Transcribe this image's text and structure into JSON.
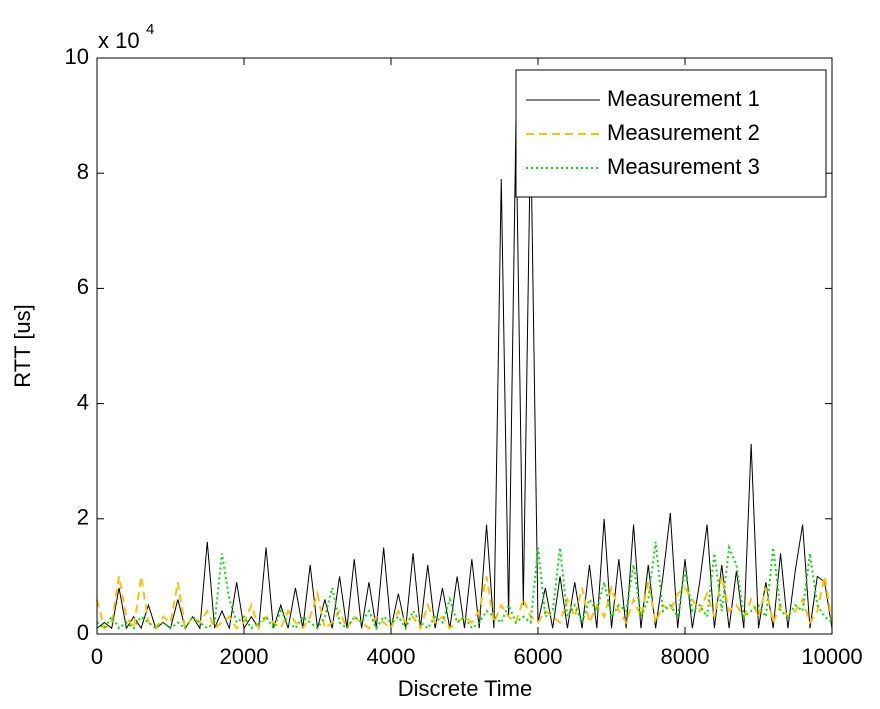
{
  "chart_data": {
    "type": "line",
    "x_label": "Discrete Time",
    "y_label": "RTT [us]",
    "y_multiplier": "x 10",
    "y_multiplier_exponent": "4",
    "x": [
      0,
      100,
      200,
      300,
      400,
      500,
      600,
      700,
      800,
      900,
      1000,
      1100,
      1200,
      1300,
      1400,
      1500,
      1600,
      1700,
      1800,
      1900,
      2000,
      2100,
      2200,
      2300,
      2400,
      2500,
      2600,
      2700,
      2800,
      2900,
      3000,
      3100,
      3200,
      3300,
      3400,
      3500,
      3600,
      3700,
      3800,
      3900,
      4000,
      4100,
      4200,
      4300,
      4400,
      4500,
      4600,
      4700,
      4800,
      4900,
      5000,
      5100,
      5200,
      5300,
      5400,
      5500,
      5600,
      5700,
      5800,
      5900,
      6000,
      6100,
      6200,
      6300,
      6400,
      6500,
      6600,
      6700,
      6800,
      6900,
      7000,
      7100,
      7200,
      7300,
      7400,
      7500,
      7600,
      7700,
      7800,
      7900,
      8000,
      8100,
      8200,
      8300,
      8400,
      8500,
      8600,
      8700,
      8800,
      8900,
      9000,
      9100,
      9200,
      9300,
      9400,
      9500,
      9600,
      9700,
      9800,
      9900,
      10000
    ],
    "series": [
      {
        "name": "Measurement 1",
        "color": "#000000",
        "linestyle": "solid",
        "values": [
          0.1,
          0.2,
          0.1,
          0.8,
          0.1,
          0.3,
          0.1,
          0.5,
          0.1,
          0.2,
          0.1,
          0.6,
          0.1,
          0.3,
          0.1,
          1.6,
          0.1,
          0.4,
          0.1,
          0.9,
          0.1,
          0.3,
          0.1,
          1.5,
          0.1,
          0.5,
          0.1,
          0.8,
          0.1,
          1.2,
          0.1,
          0.6,
          0.1,
          1.0,
          0.1,
          1.3,
          0.1,
          0.9,
          0.1,
          1.5,
          0.1,
          0.7,
          0.1,
          1.4,
          0.1,
          1.2,
          0.1,
          0.8,
          0.1,
          1.0,
          0.1,
          1.3,
          0.1,
          1.9,
          0.1,
          7.9,
          0.3,
          8.9,
          0.5,
          8.8,
          0.2,
          0.8,
          0.1,
          1.0,
          0.1,
          0.9,
          0.1,
          1.2,
          0.1,
          2.0,
          0.1,
          1.3,
          0.1,
          1.9,
          0.1,
          1.2,
          0.1,
          1.0,
          2.1,
          0.1,
          1.3,
          0.1,
          0.9,
          1.9,
          0.1,
          1.2,
          0.1,
          1.1,
          0.1,
          3.3,
          0.1,
          0.9,
          0.1,
          1.4,
          0.1,
          1.1,
          1.9,
          0.1,
          1.0,
          0.9,
          0.1
        ]
      },
      {
        "name": "Measurement 2",
        "color": "#ffc000",
        "linestyle": "dashed",
        "values": [
          0.6,
          0.1,
          0.2,
          1.0,
          0.3,
          0.1,
          1.0,
          0.2,
          0.1,
          0.3,
          0.2,
          0.9,
          0.1,
          0.3,
          0.2,
          0.4,
          0.1,
          0.2,
          0.3,
          0.1,
          0.2,
          0.5,
          0.1,
          0.3,
          0.2,
          0.1,
          0.4,
          0.2,
          0.1,
          0.3,
          0.7,
          0.1,
          0.2,
          0.4,
          0.1,
          0.3,
          0.2,
          0.1,
          0.3,
          0.2,
          0.1,
          0.4,
          0.2,
          0.3,
          0.1,
          0.5,
          0.2,
          0.3,
          0.1,
          0.2,
          0.3,
          0.2,
          0.4,
          1.0,
          0.2,
          0.5,
          0.3,
          0.2,
          0.6,
          0.3,
          0.2,
          0.4,
          0.3,
          0.2,
          0.6,
          0.3,
          0.8,
          0.2,
          0.5,
          0.3,
          0.8,
          0.4,
          0.2,
          0.6,
          0.3,
          0.9,
          0.2,
          0.5,
          0.4,
          0.7,
          0.8,
          0.6,
          0.4,
          0.7,
          0.3,
          1.0,
          0.4,
          0.5,
          0.3,
          0.6,
          0.3,
          0.8,
          0.2,
          0.5,
          0.3,
          0.4,
          0.6,
          0.2,
          0.4,
          1.0,
          0.2
        ]
      },
      {
        "name": "Measurement 3",
        "color": "#00e000",
        "linestyle": "dotted",
        "values": [
          0.2,
          0.1,
          0.3,
          0.1,
          0.2,
          0.1,
          0.3,
          0.2,
          0.1,
          0.2,
          0.1,
          0.2,
          0.1,
          0.3,
          0.2,
          0.1,
          0.2,
          1.4,
          0.6,
          0.2,
          0.3,
          0.1,
          0.2,
          0.3,
          0.1,
          0.4,
          0.2,
          0.1,
          0.3,
          0.2,
          0.1,
          0.3,
          0.8,
          0.2,
          0.1,
          0.3,
          0.2,
          0.4,
          0.1,
          0.3,
          0.2,
          0.3,
          0.1,
          0.4,
          0.2,
          0.1,
          0.3,
          0.2,
          0.6,
          0.2,
          0.3,
          0.1,
          0.2,
          0.4,
          0.3,
          0.2,
          0.5,
          0.2,
          0.3,
          0.2,
          1.5,
          0.3,
          0.4,
          1.5,
          0.3,
          0.5,
          0.2,
          0.6,
          0.4,
          0.9,
          0.3,
          0.5,
          0.4,
          1.2,
          0.3,
          0.6,
          1.6,
          0.4,
          0.5,
          0.3,
          1.1,
          0.4,
          0.5,
          0.3,
          1.4,
          0.4,
          1.5,
          1.2,
          0.3,
          0.4,
          0.5,
          0.3,
          1.5,
          0.4,
          0.3,
          0.5,
          0.4,
          1.4,
          0.5,
          0.3,
          0.2
        ]
      }
    ],
    "xlim": [
      0,
      10000
    ],
    "xticks": [
      0,
      2000,
      4000,
      6000,
      8000,
      10000
    ],
    "ylim": [
      0,
      10
    ],
    "yticks": [
      0,
      2,
      4,
      6,
      8,
      10
    ],
    "grid": false,
    "legend": "top-right"
  }
}
